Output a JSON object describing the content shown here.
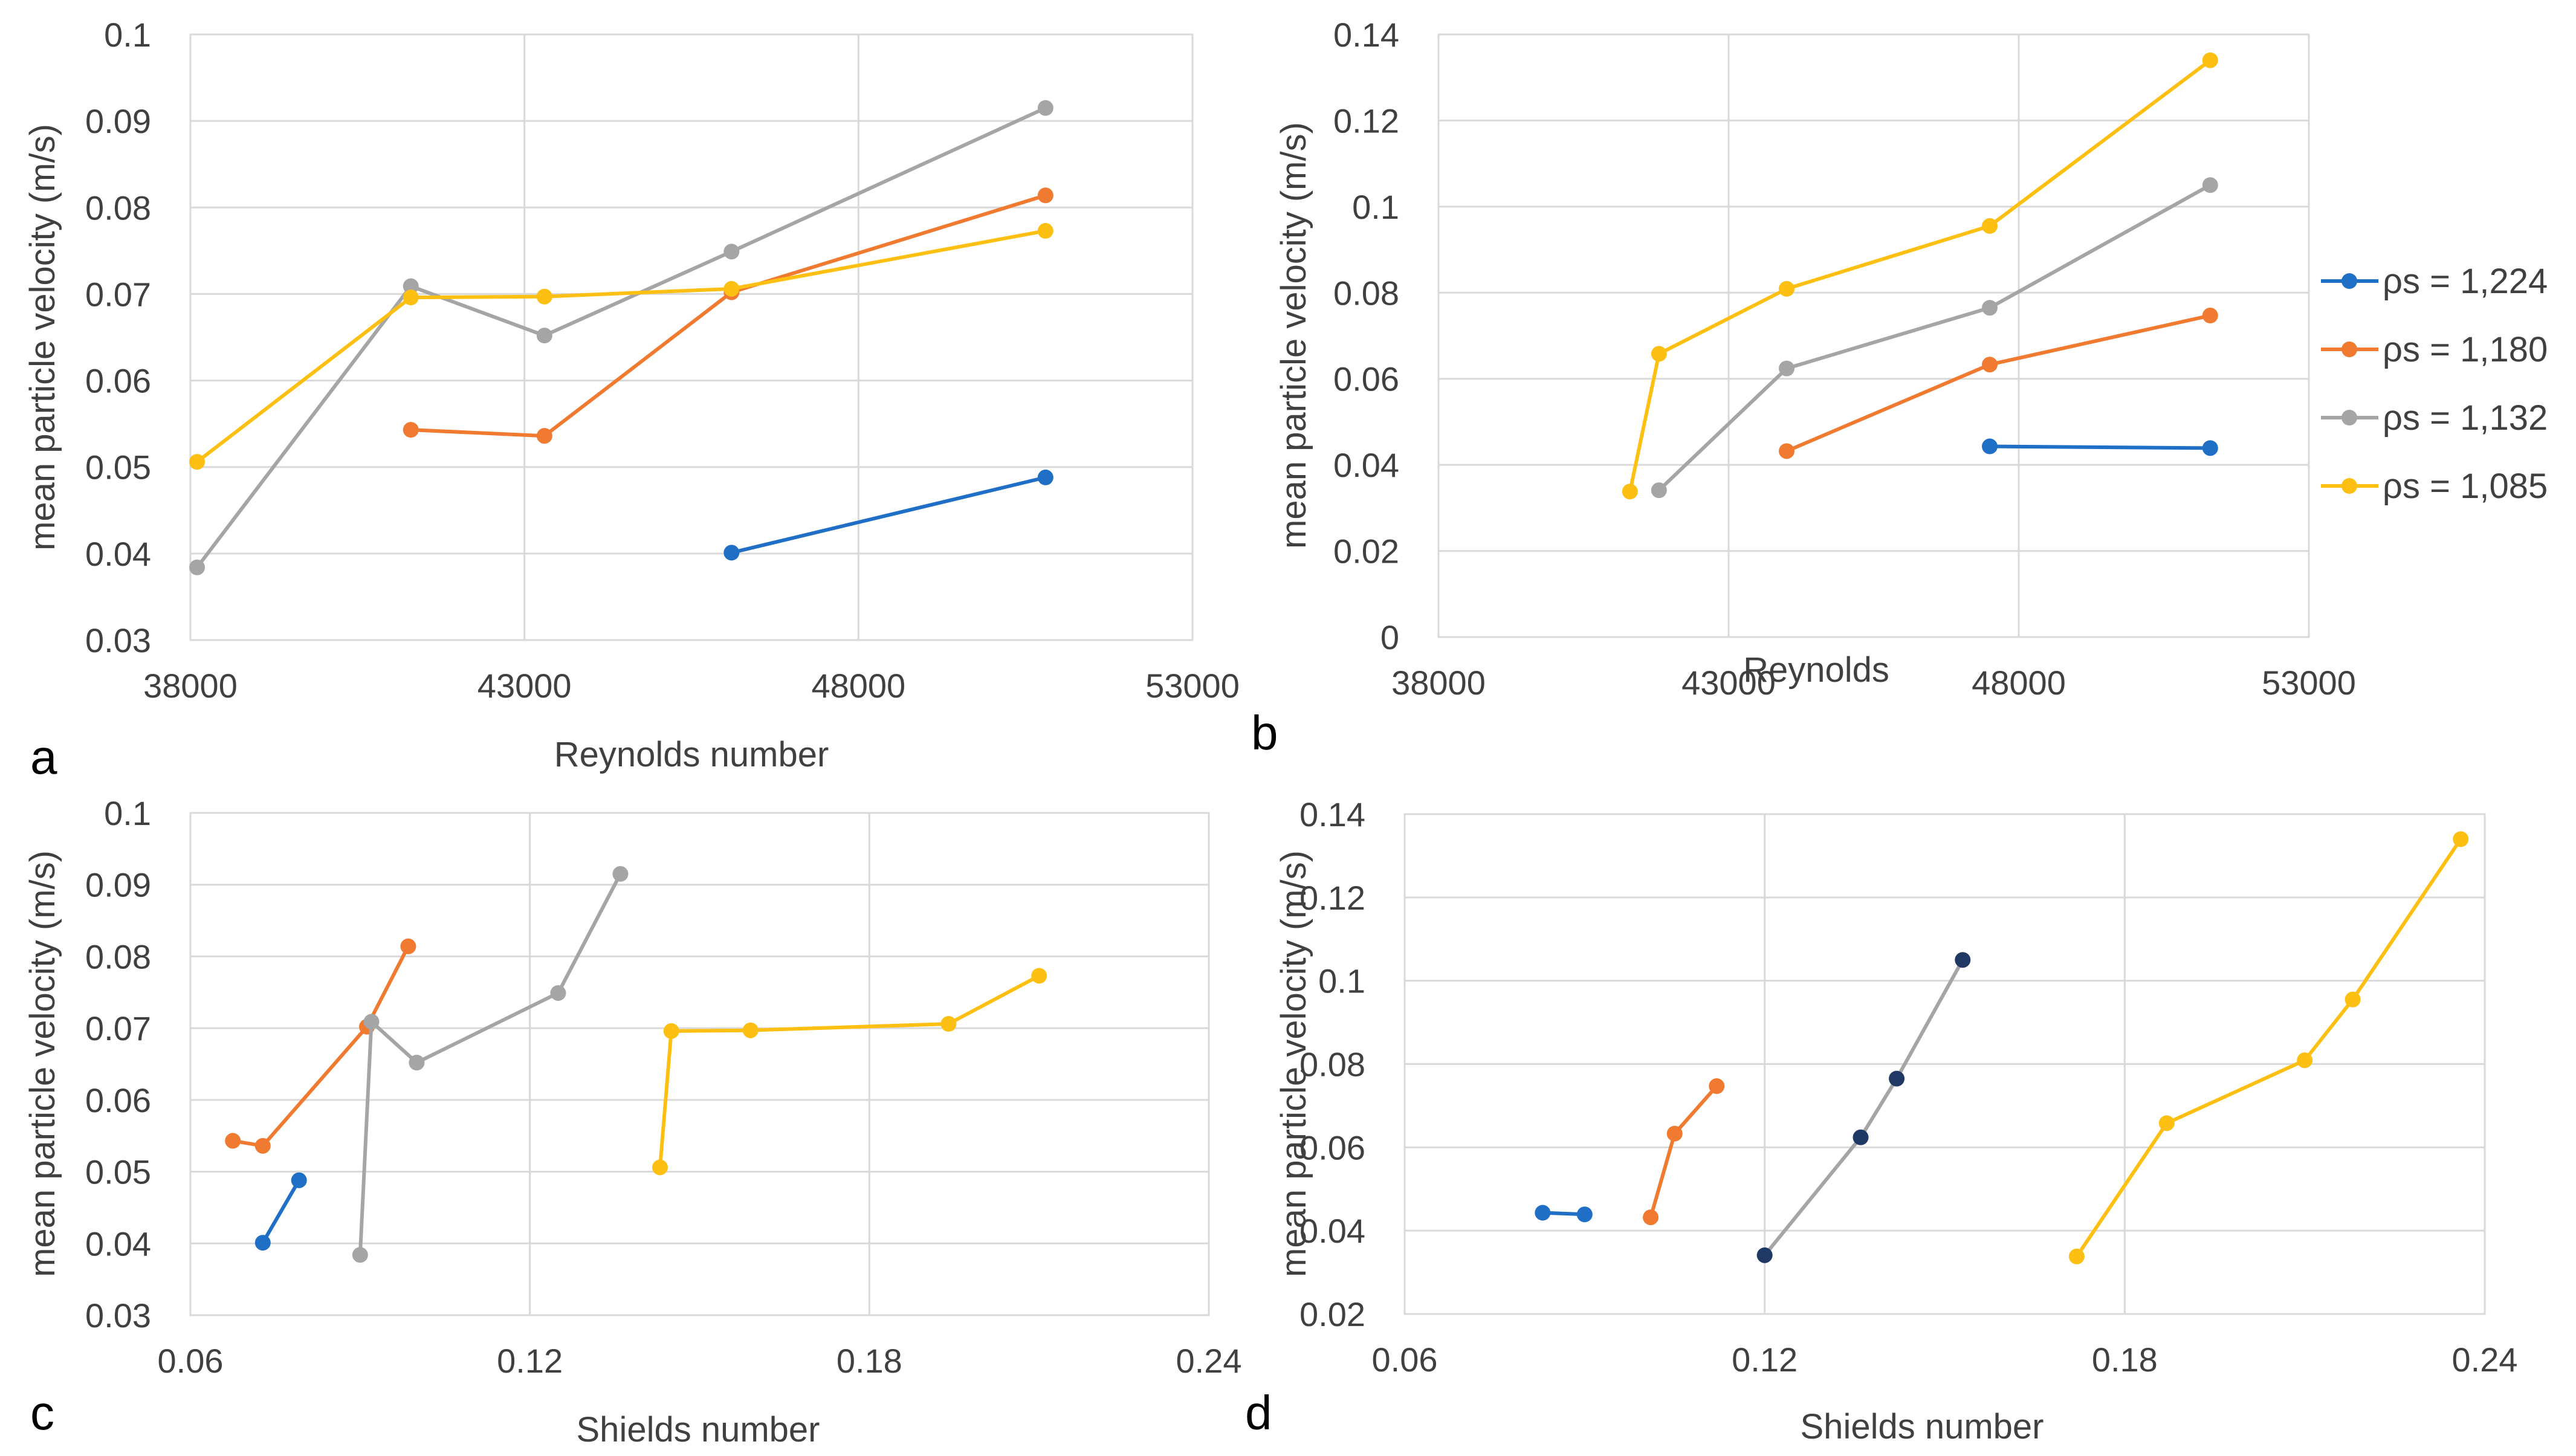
{
  "colors": {
    "series": [
      "#1f6fc6",
      "#f07a30",
      "#a5a5a5",
      "#fdc012"
    ],
    "grid": "#d9d9d9",
    "text": "#404040"
  },
  "legend": {
    "entries": [
      "ρs = 1,224",
      "ρs = 1,180",
      "ρs = 1,132",
      "ρs = 1,085"
    ]
  },
  "chart_data": [
    {
      "panel_label": "a",
      "type": "line",
      "xlabel": "Reynolds number",
      "ylabel": "mean  particle velocity  (m/s)",
      "xlim": [
        38000,
        53000
      ],
      "ylim": [
        0.03,
        0.1
      ],
      "xticks": [
        38000,
        43000,
        48000,
        53000
      ],
      "yticks": [
        0.03,
        0.04,
        0.05,
        0.06,
        0.07,
        0.08,
        0.09,
        0.1
      ],
      "xtick_labels": [
        "38000",
        "43000",
        "48000",
        "53000"
      ],
      "ytick_labels": [
        "0.03",
        "0.04",
        "0.05",
        "0.06",
        "0.07",
        "0.08",
        "0.09",
        "0.1"
      ],
      "series": [
        {
          "name": "ρs = 1,224",
          "x": [
            46100,
            50800
          ],
          "y": [
            0.0401,
            0.0488
          ]
        },
        {
          "name": "ρs = 1,180",
          "x": [
            41300,
            43300,
            46100,
            50800
          ],
          "y": [
            0.0543,
            0.0536,
            0.0702,
            0.0814
          ]
        },
        {
          "name": "ρs = 1,132",
          "x": [
            38100,
            41300,
            43300,
            46100,
            50800
          ],
          "y": [
            0.0384,
            0.0709,
            0.0652,
            0.0749,
            0.0915
          ]
        },
        {
          "name": "ρs = 1,085",
          "x": [
            38100,
            41300,
            43300,
            46100,
            50800
          ],
          "y": [
            0.0506,
            0.0696,
            0.0697,
            0.0706,
            0.0773
          ]
        }
      ]
    },
    {
      "panel_label": "b",
      "type": "line",
      "xlabel": "Reynolds",
      "ylabel": "mean  particle velocity  (m/s)",
      "xlim": [
        38000,
        53000
      ],
      "ylim": [
        0,
        0.14
      ],
      "xticks": [
        38000,
        43000,
        48000,
        53000
      ],
      "yticks": [
        0,
        0.02,
        0.04,
        0.06,
        0.08,
        0.1,
        0.12,
        0.14
      ],
      "xtick_labels": [
        "38000",
        "43000",
        "48000",
        "53000"
      ],
      "ytick_labels": [
        "0",
        "0.02",
        "0.04",
        "0.06",
        "0.08",
        "0.1",
        "0.12",
        "0.14"
      ],
      "series": [
        {
          "name": "ρs = 1,224",
          "x": [
            47500,
            51300
          ],
          "y": [
            0.0443,
            0.0439
          ]
        },
        {
          "name": "ρs = 1,180",
          "x": [
            44000,
            47500,
            51300
          ],
          "y": [
            0.0432,
            0.0633,
            0.0747
          ]
        },
        {
          "name": "ρs = 1,132",
          "x": [
            41800,
            44000,
            47500,
            51300
          ],
          "y": [
            0.0341,
            0.0624,
            0.0765,
            0.105
          ]
        },
        {
          "name": "ρs = 1,085",
          "x": [
            41300,
            41800,
            44000,
            47500,
            51300
          ],
          "y": [
            0.0338,
            0.0658,
            0.0809,
            0.0955,
            0.134
          ]
        }
      ]
    },
    {
      "panel_label": "c",
      "type": "line",
      "xlabel": "Shields number",
      "ylabel": "mean  particle velocity  (m/s)",
      "xlim": [
        0.06,
        0.24
      ],
      "ylim": [
        0.03,
        0.1
      ],
      "xticks": [
        0.06,
        0.12,
        0.18,
        0.24
      ],
      "yticks": [
        0.03,
        0.04,
        0.05,
        0.06,
        0.07,
        0.08,
        0.09,
        0.1
      ],
      "xtick_labels": [
        "0.06",
        "0.12",
        "0.18",
        "0.24"
      ],
      "ytick_labels": [
        "0.03",
        "0.04",
        "0.05",
        "0.06",
        "0.07",
        "0.08",
        "0.09",
        "0.1"
      ],
      "series": [
        {
          "name": "ρs = 1,224",
          "x": [
            0.0728,
            0.0792
          ],
          "y": [
            0.0401,
            0.0488
          ]
        },
        {
          "name": "ρs = 1,180",
          "x": [
            0.0675,
            0.0728,
            0.0912,
            0.0985
          ],
          "y": [
            0.0543,
            0.0536,
            0.0702,
            0.0814
          ]
        },
        {
          "name": "ρs = 1,132",
          "x": [
            0.09,
            0.092,
            0.1,
            0.125,
            0.136
          ],
          "y": [
            0.0384,
            0.0709,
            0.0652,
            0.0749,
            0.0915
          ]
        },
        {
          "name": "ρs = 1,085",
          "x": [
            0.143,
            0.145,
            0.159,
            0.194,
            0.21
          ],
          "y": [
            0.0506,
            0.0696,
            0.0697,
            0.0706,
            0.0773
          ]
        }
      ]
    },
    {
      "panel_label": "d",
      "type": "line",
      "xlabel": "Shields number",
      "ylabel": "mean  particle velocity  (m/s)",
      "xlim": [
        0.06,
        0.24
      ],
      "ylim": [
        0.02,
        0.14
      ],
      "xticks": [
        0.06,
        0.12,
        0.18,
        0.24
      ],
      "yticks": [
        0.02,
        0.04,
        0.06,
        0.08,
        0.1,
        0.12,
        0.14
      ],
      "xtick_labels": [
        "0.06",
        "0.12",
        "0.18",
        "0.24"
      ],
      "ytick_labels": [
        "0.02",
        "0.04",
        "0.06",
        "0.08",
        "0.1",
        "0.12",
        "0.14"
      ],
      "series": [
        {
          "name": "ρs = 1,224",
          "x": [
            0.083,
            0.09
          ],
          "y": [
            0.0443,
            0.0439
          ]
        },
        {
          "name": "ρs = 1,180",
          "x": [
            0.101,
            0.105,
            0.112
          ],
          "y": [
            0.0432,
            0.0633,
            0.0747
          ]
        },
        {
          "name": "ρs = 1,132",
          "x": [
            0.12,
            0.136,
            0.142,
            0.153
          ],
          "y": [
            0.0341,
            0.0624,
            0.0765,
            0.105
          ]
        },
        {
          "name": "ρs = 1,085",
          "x": [
            0.172,
            0.187,
            0.21,
            0.218,
            0.236
          ],
          "y": [
            0.0338,
            0.0658,
            0.0809,
            0.0955,
            0.134
          ]
        }
      ]
    }
  ]
}
